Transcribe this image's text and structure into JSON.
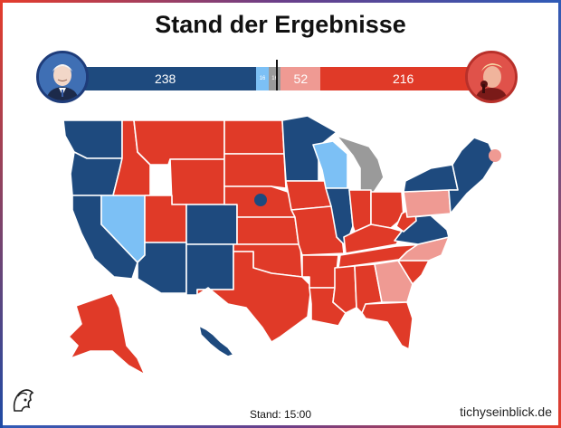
{
  "title": "Stand der Ergebnisse",
  "tally": {
    "dem_called": 238,
    "dem_leaning": 16,
    "undecided": 16,
    "rep_leaning": 52,
    "rep_called": 216,
    "dem_called_label": "238",
    "dem_leaning_label": "16",
    "undecided_label": "16",
    "rep_leaning_label": "52",
    "rep_called_label": "216"
  },
  "colors": {
    "dem_called": "#1e4a7e",
    "dem_leaning": "#7cc0f5",
    "undecided": "#9a9a9a",
    "rep_leaning": "#ef9a93",
    "rep_called": "#e03a28"
  },
  "footer": {
    "stand": "Stand: 15:00",
    "site": "tichyseinblick.de"
  },
  "map": {
    "states": {
      "WA": "dem_called",
      "OR": "dem_called",
      "CA": "dem_called",
      "NV": "dem_leaning",
      "ID": "rep_called",
      "MT": "rep_called",
      "WY": "rep_called",
      "UT": "rep_called",
      "AZ": "dem_called",
      "CO": "dem_called",
      "NM": "dem_called",
      "ND": "rep_called",
      "SD": "rep_called",
      "NE": "rep_called",
      "KS": "rep_called",
      "OK": "rep_called",
      "TX": "rep_called",
      "MN": "dem_called",
      "IA": "rep_called",
      "MO": "rep_called",
      "AR": "rep_called",
      "LA": "rep_called",
      "WI": "dem_leaning",
      "IL": "dem_called",
      "MI": "undecided",
      "IN": "rep_called",
      "OH": "rep_called",
      "KY": "rep_called",
      "TN": "rep_called",
      "MS": "rep_called",
      "AL": "rep_called",
      "GA": "rep_leaning",
      "FL": "rep_called",
      "SC": "rep_called",
      "NC": "rep_leaning",
      "VA": "dem_called",
      "WV": "rep_called",
      "PA": "rep_leaning",
      "NY": "dem_called",
      "NE_US": "dem_called",
      "AK": "rep_called",
      "HI": "dem_called",
      "NE2": "dem_called",
      "ME2": "rep_leaning"
    },
    "icons": [
      "joe-biden-portrait",
      "donald-trump-portrait",
      "tichys-einblick-logo"
    ]
  }
}
